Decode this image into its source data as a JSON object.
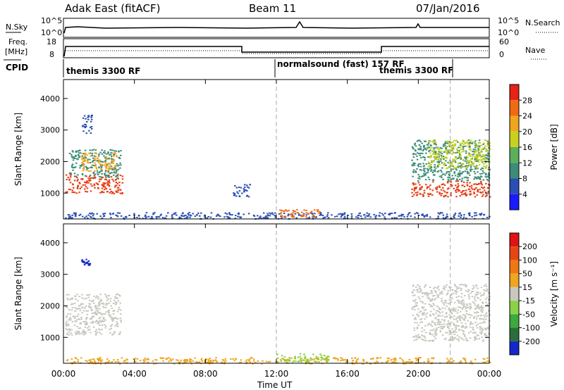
{
  "header": {
    "station": "Adak East (fitACF)",
    "beam": "Beam 11",
    "date": "07/Jan/2016"
  },
  "top_panels": {
    "nsky_label": "N.Sky",
    "nsearch_label": "N.Search",
    "nsky_ticks": [
      "10^5",
      "10^0"
    ],
    "nsearch_ticks": [
      "10^5",
      "10^0"
    ],
    "freq_label_line1": "Freq.",
    "freq_label_line2": "[MHz]",
    "freq_ticks": [
      "18",
      "8"
    ],
    "nave_label": "Nave",
    "nave_ticks": [
      "60",
      "0"
    ],
    "cpid_label": "CPID",
    "cpid_segments": [
      {
        "text": "themis 3300 RF",
        "start_hour": 0,
        "end_hour": 12
      },
      {
        "text": "normalsound (fast) 157 RF",
        "start_hour": 12,
        "end_hour": 21.8
      },
      {
        "text": "themis 3300 RF",
        "start_hour": 21.8,
        "end_hour": 24
      }
    ]
  },
  "chart_data": [
    {
      "type": "heatmap",
      "name": "power",
      "xlabel": "Time UT",
      "ylabel": "Slant Range [km]",
      "xlim": [
        0,
        24
      ],
      "ylim": [
        180,
        4600
      ],
      "y_ticks": [
        "1000",
        "2000",
        "3000",
        "4000"
      ],
      "x_tick_labels": [
        "00:00",
        "04:00",
        "08:00",
        "12:00",
        "16:00",
        "20:00",
        "00:00"
      ],
      "x_tick_hours": [
        0,
        4,
        8,
        12,
        16,
        20,
        24
      ],
      "dashed_lines_hours": [
        12,
        21.8
      ],
      "colorbar": {
        "label": "Power [dB]",
        "ticks": [
          "4",
          "8",
          "12",
          "16",
          "20",
          "24",
          "28"
        ],
        "colors": [
          "#1a1aff",
          "#2a4fb4",
          "#3d8c78",
          "#5cb05c",
          "#c8d21e",
          "#f0a51e",
          "#f06a14",
          "#e62314"
        ]
      },
      "regions": [
        {
          "x0": 0.1,
          "x1": 3.3,
          "y0": 1000,
          "y1": 1600,
          "color": "#e63c14"
        },
        {
          "x0": 0.3,
          "x1": 3.2,
          "y0": 1500,
          "y1": 2400,
          "color": "#3d8c78"
        },
        {
          "x0": 1.0,
          "x1": 3.0,
          "y0": 1700,
          "y1": 2300,
          "color": "#f0a51e"
        },
        {
          "x0": 1.0,
          "x1": 1.6,
          "y0": 2900,
          "y1": 3500,
          "color": "#2a4fb4"
        },
        {
          "x0": 19.6,
          "x1": 24,
          "y0": 900,
          "y1": 1400,
          "color": "#e63c14"
        },
        {
          "x0": 19.6,
          "x1": 24,
          "y0": 1400,
          "y1": 2700,
          "color": "#3d8c78"
        },
        {
          "x0": 20.5,
          "x1": 24,
          "y0": 1800,
          "y1": 2700,
          "color": "#c8d21e"
        },
        {
          "x0": 0,
          "x1": 24,
          "y0": 200,
          "y1": 400,
          "color": "#2a4fb4"
        },
        {
          "x0": 12,
          "x1": 14.5,
          "y0": 250,
          "y1": 500,
          "color": "#f06a14"
        },
        {
          "x0": 9.5,
          "x1": 10.5,
          "y0": 900,
          "y1": 1300,
          "color": "#2a4fb4"
        }
      ]
    },
    {
      "type": "heatmap",
      "name": "velocity",
      "xlabel": "Time UT",
      "ylabel": "Slant Range [km]",
      "xlim": [
        0,
        24
      ],
      "ylim": [
        180,
        4600
      ],
      "y_ticks": [
        "1000",
        "2000",
        "3000",
        "4000"
      ],
      "x_tick_labels": [
        "00:00",
        "04:00",
        "08:00",
        "12:00",
        "16:00",
        "20:00",
        "00:00"
      ],
      "x_tick_hours": [
        0,
        4,
        8,
        12,
        16,
        20,
        24
      ],
      "dashed_lines_hours": [
        12,
        21.8
      ],
      "colorbar": {
        "label": "Velocity [m s⁻¹]",
        "ticks": [
          "200",
          "100",
          "50",
          "15",
          "-15",
          "-50",
          "-100",
          "-200"
        ],
        "colors": [
          "#1428c8",
          "#2a6e3c",
          "#3caa3c",
          "#8cd246",
          "#c8c8c0",
          "#f0a51e",
          "#f07814",
          "#e64614",
          "#dc1414"
        ]
      },
      "regions": [
        {
          "x0": 0.1,
          "x1": 3.2,
          "y0": 1100,
          "y1": 2400,
          "color": "#c8c8c0"
        },
        {
          "x0": 19.6,
          "x1": 24,
          "y0": 900,
          "y1": 2700,
          "color": "#c8c8c0"
        },
        {
          "x0": 0,
          "x1": 24,
          "y0": 180,
          "y1": 380,
          "color": "#f0a51e"
        },
        {
          "x0": 12,
          "x1": 15,
          "y0": 200,
          "y1": 500,
          "color": "#8cd246"
        },
        {
          "x0": 1.0,
          "x1": 1.5,
          "y0": 3300,
          "y1": 3500,
          "color": "#1428c8"
        }
      ]
    }
  ]
}
